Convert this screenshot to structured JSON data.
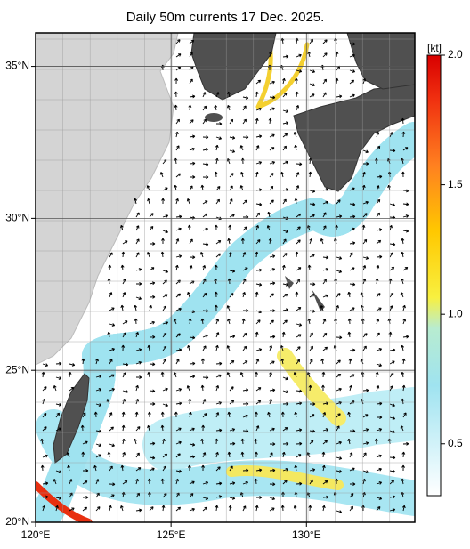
{
  "map": {
    "title": "Daily 50m currents 17 Dec. 2025.",
    "xaxis": {
      "lim": [
        120,
        134
      ],
      "ticks": [
        {
          "value": 120,
          "label": "120°E"
        },
        {
          "value": 125,
          "label": "125°E"
        },
        {
          "value": 130,
          "label": "130°E"
        }
      ]
    },
    "yaxis": {
      "lim": [
        20,
        36.1
      ],
      "ticks": [
        {
          "value": 20,
          "label": "20°N"
        },
        {
          "value": 25,
          "label": "25°N"
        },
        {
          "value": 30,
          "label": "30°N"
        },
        {
          "value": 35,
          "label": "35°N"
        }
      ]
    },
    "colorbar": {
      "unit": "[kt]",
      "lim": [
        0.3,
        2.0
      ],
      "ticks": [
        0.5,
        {
          "value": 1,
          "label": "1.0"
        },
        1.5,
        {
          "value": 2,
          "label": "2.0"
        }
      ]
    }
  }
}
